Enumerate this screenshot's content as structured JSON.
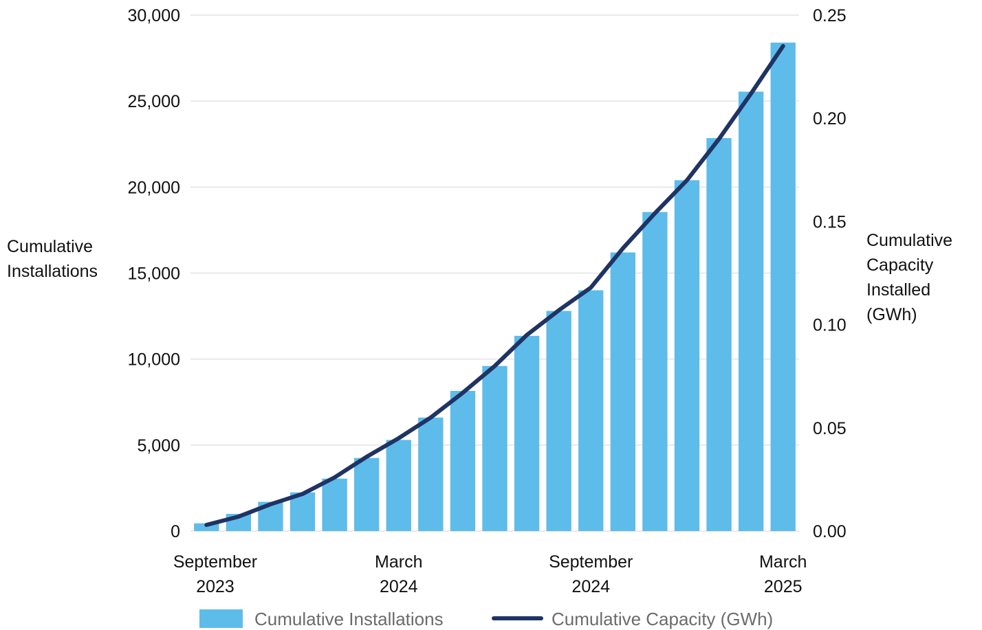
{
  "chart_data": {
    "type": "bar",
    "title": "",
    "y_left_label_lines": [
      "Cumulative",
      "Installations"
    ],
    "y_right_label_lines": [
      "Cumulative",
      "Capacity",
      "Installed",
      "(GWh)"
    ],
    "ylim_left": [
      0,
      30000
    ],
    "ylim_right": [
      0,
      0.25
    ],
    "yticks_left": [
      "0",
      "5,000",
      "10,000",
      "15,000",
      "20,000",
      "25,000",
      "30,000"
    ],
    "yticks_right": [
      "0.00",
      "0.05",
      "0.10",
      "0.15",
      "0.20",
      "0.25"
    ],
    "x_tick_labels": [
      {
        "index": 0,
        "lines": [
          "September",
          "2023"
        ]
      },
      {
        "index": 6,
        "lines": [
          "March",
          "2024"
        ]
      },
      {
        "index": 12,
        "lines": [
          "September",
          "2024"
        ]
      },
      {
        "index": 18,
        "lines": [
          "March",
          "2025"
        ]
      }
    ],
    "grid": true,
    "legend_position": "bottom",
    "colors": {
      "bars": "#5dbcea",
      "line": "#1f3364"
    },
    "series": [
      {
        "name": "Cumulative Installations",
        "type": "bar",
        "axis": "left",
        "values": [
          450,
          1000,
          1700,
          2250,
          3050,
          4250,
          5300,
          6600,
          8150,
          9600,
          11350,
          12800,
          14000,
          16200,
          18550,
          20400,
          22850,
          25550,
          28400
        ]
      },
      {
        "name": "Cumulative Capacity (GWh)",
        "type": "line",
        "axis": "right",
        "values": [
          0.003,
          0.007,
          0.013,
          0.018,
          0.026,
          0.036,
          0.045,
          0.055,
          0.067,
          0.08,
          0.095,
          0.107,
          0.118,
          0.137,
          0.154,
          0.17,
          0.19,
          0.212,
          0.235
        ]
      }
    ]
  }
}
